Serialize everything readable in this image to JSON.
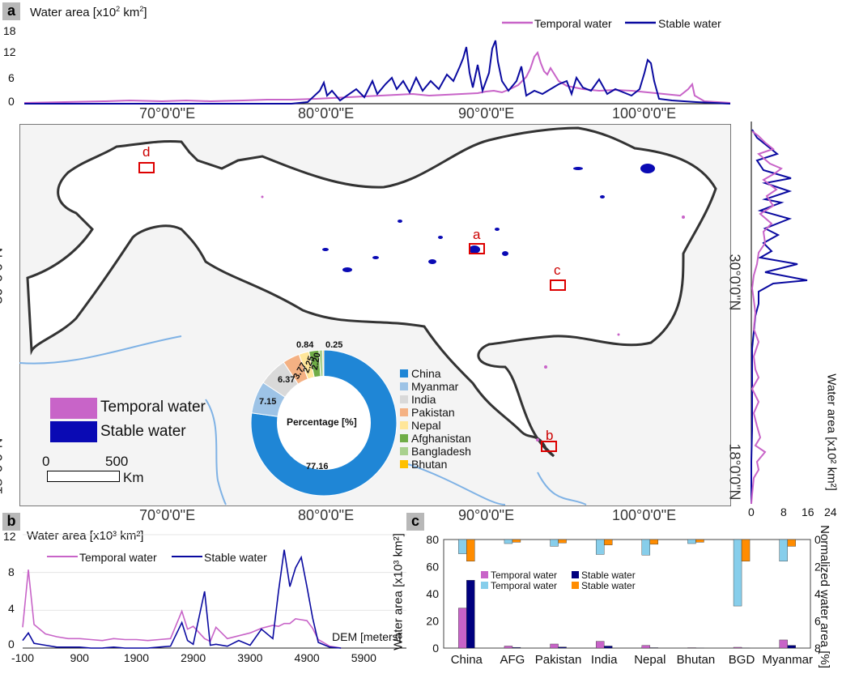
{
  "panel_letters": {
    "a": "a",
    "b": "b",
    "c": "c"
  },
  "top_chart": {
    "ylabel_pre": "Water area [x10",
    "ylabel_exp": "2",
    "ylabel_post": " km",
    "ylabel_sq": "2",
    "ylabel_end": "]",
    "yticks": [
      "18",
      "12",
      "6",
      "0"
    ],
    "legend": {
      "temporal": "Temporal water",
      "stable": "Stable water"
    }
  },
  "right_chart": {
    "ylabel": "Water area [x10² km²]",
    "xticks": [
      "0",
      "8",
      "16",
      "24"
    ]
  },
  "map": {
    "lon_labels": [
      "70°0'0\"E",
      "80°0'0\"E",
      "90°0'0\"E",
      "100°0'0\"E"
    ],
    "lat_labels": [
      "30°0'0\"N",
      "18°0'0\"N"
    ],
    "site_labels": {
      "a": "a",
      "b": "b",
      "c": "c",
      "d": "d"
    },
    "legend": {
      "temporal": "Temporal water",
      "stable": "Stable water"
    },
    "scalebar": {
      "zero": "0",
      "five_hundred": "500",
      "unit": "Km"
    }
  },
  "donut": {
    "center_label": "Percentage [%]",
    "labels_shown": [
      "77.16",
      "7.15",
      "6.37",
      "3.77",
      "2.25",
      "2.20",
      "0.84",
      "0.25"
    ],
    "legend": [
      "China",
      "Myanmar",
      "India",
      "Pakistan",
      "Nepal",
      "Afghanistan",
      "Bangladesh",
      "Bhutan"
    ],
    "colors": [
      "#1f86d6",
      "#9dc3e6",
      "#d9d9d9",
      "#f4b183",
      "#ffe699",
      "#70ad47",
      "#a9d18e",
      "#ffc000"
    ]
  },
  "chart_data": [
    {
      "type": "line",
      "title": "",
      "xlabel": "",
      "ylabel": "Water area [x10² km²]",
      "ylim": [
        0,
        18
      ],
      "series": [
        {
          "name": "Temporal water"
        },
        {
          "name": "Stable water"
        }
      ]
    },
    {
      "type": "pie",
      "title": "Percentage [%]",
      "categories": [
        "China",
        "Myanmar",
        "India",
        "Pakistan",
        "Nepal",
        "Afghanistan",
        "Bangladesh",
        "Bhutan"
      ],
      "values": [
        77.16,
        7.15,
        6.37,
        3.77,
        2.25,
        2.2,
        0.84,
        0.25
      ]
    },
    {
      "type": "line",
      "title": "",
      "xlabel": "DEM [meters]",
      "ylabel": "Water area [x10³ km²]",
      "x": [
        -100,
        0,
        100,
        300,
        500,
        700,
        900,
        1100,
        1300,
        1500,
        1700,
        1900,
        2100,
        2300,
        2500,
        2700,
        2800,
        2900,
        3100,
        3200,
        3300,
        3500,
        3700,
        3900,
        4100,
        4300,
        4400,
        4500,
        4600,
        4700,
        4800,
        4900,
        5000,
        5100,
        5300,
        5500
      ],
      "xticks": [
        "-100",
        "900",
        "1900",
        "2900",
        "3900",
        "4900",
        "5900"
      ],
      "yticks": [
        "12",
        "8",
        "4",
        "0"
      ],
      "ylim": [
        0,
        12
      ],
      "series": [
        {
          "name": "Temporal water",
          "values": [
            2.2,
            8.3,
            2.5,
            1.5,
            1.2,
            1.0,
            1.0,
            0.9,
            0.8,
            1.0,
            0.9,
            0.9,
            0.8,
            0.9,
            1.0,
            3.9,
            2.0,
            2.3,
            1.0,
            0.7,
            2.2,
            1.0,
            1.3,
            1.6,
            2.1,
            2.4,
            2.3,
            2.6,
            2.6,
            3.1,
            3.0,
            2.9,
            2.1,
            0.9,
            0.2,
            0.0
          ]
        },
        {
          "name": "Stable water",
          "values": [
            0.8,
            1.6,
            0.5,
            0.3,
            0.1,
            0.1,
            0.1,
            0.0,
            0.0,
            0.1,
            0.0,
            0.0,
            0.0,
            0.1,
            0.2,
            2.7,
            0.8,
            0.4,
            6.0,
            0.3,
            0.4,
            0.2,
            0.8,
            0.3,
            2.0,
            1.0,
            6.0,
            10.4,
            6.5,
            8.5,
            9.6,
            6.5,
            3.2,
            0.6,
            0.1,
            0.0
          ]
        }
      ]
    },
    {
      "type": "bar",
      "title": "",
      "categories": [
        "China",
        "AFG",
        "Pakistan",
        "India",
        "Nepal",
        "Bhutan",
        "BGD",
        "Myanmar"
      ],
      "ylabel": "Water area [x10³ km²]",
      "ylabel_right": "Normalized water area [%]",
      "yticks_left": [
        "80",
        "60",
        "40",
        "20",
        "0"
      ],
      "yticks_right": [
        "0",
        "2",
        "4",
        "6",
        "8"
      ],
      "ylim": [
        0,
        80
      ],
      "ylim_right": [
        0,
        8
      ],
      "series": [
        {
          "name": "Temporal water",
          "axis": "left",
          "color": "#c863c8",
          "values": [
            29.5,
            1.5,
            3.0,
            5.0,
            2.0,
            0.3,
            0.6,
            6.0
          ]
        },
        {
          "name": "Stable water",
          "axis": "left",
          "color": "#00007f",
          "values": [
            50.0,
            0.5,
            0.8,
            1.5,
            0.3,
            0.1,
            0.1,
            2.0
          ]
        },
        {
          "name": "Temporal water",
          "axis": "right",
          "color": "#87ceeb",
          "values": [
            1.05,
            0.3,
            0.5,
            1.1,
            1.15,
            0.3,
            4.9,
            1.6
          ]
        },
        {
          "name": "Stable water",
          "axis": "right",
          "color": "#ff8c00",
          "values": [
            1.6,
            0.2,
            0.25,
            0.4,
            0.35,
            0.2,
            1.6,
            0.5
          ]
        }
      ],
      "legend": [
        "Temporal water",
        "Stable water",
        "Temporal water",
        "Stable water"
      ]
    }
  ]
}
